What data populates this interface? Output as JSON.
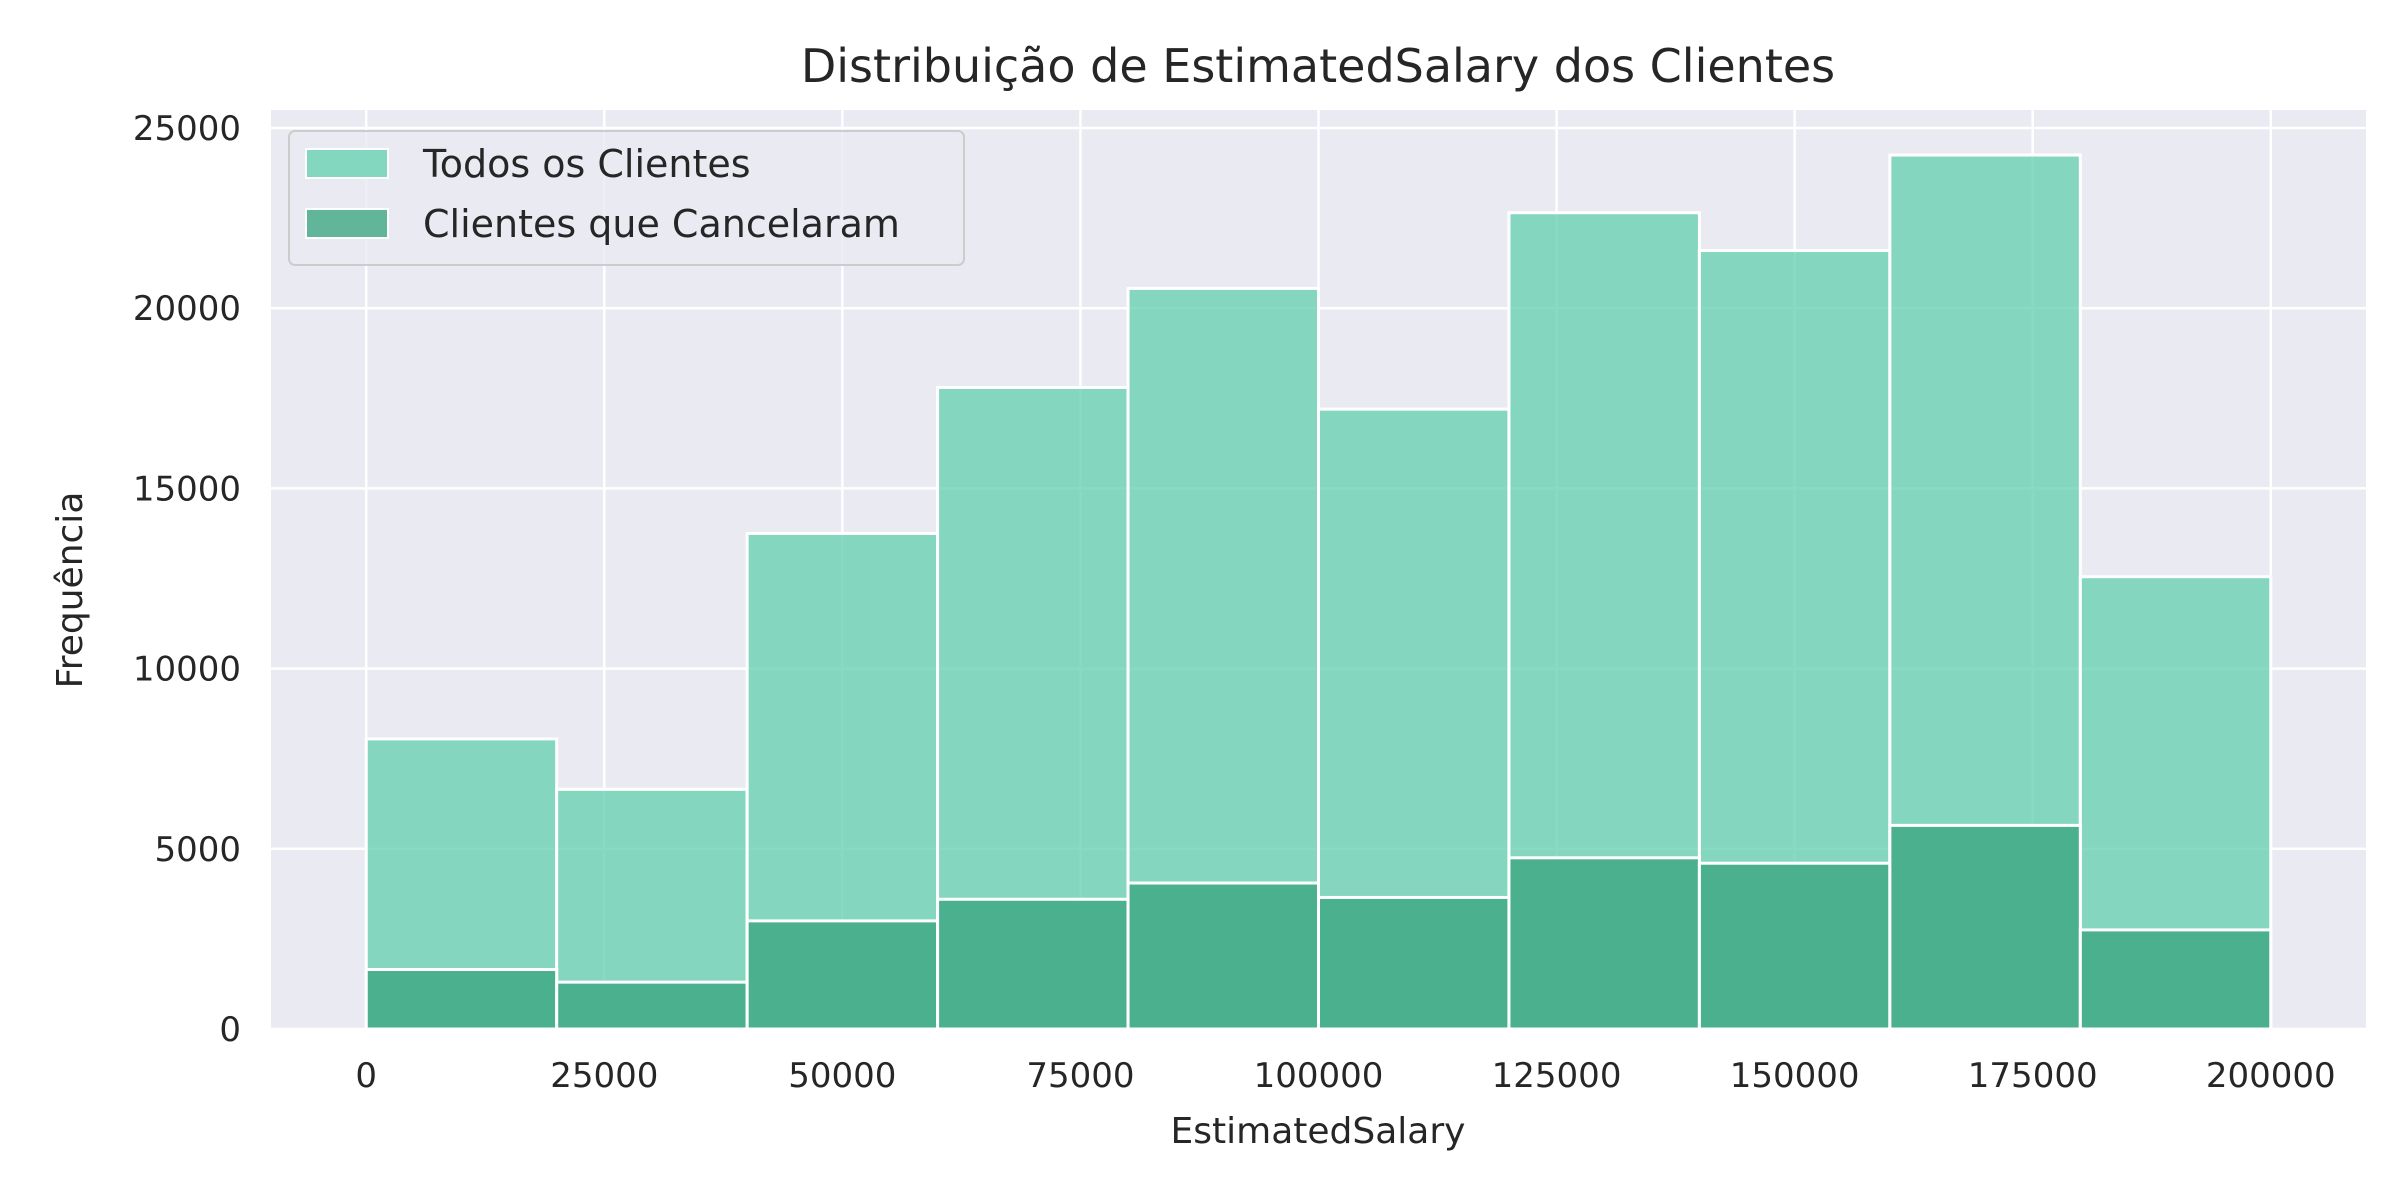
{
  "chart_data": {
    "type": "bar",
    "title": "Distribuição de EstimatedSalary dos Clientes",
    "xlabel": "EstimatedSalary",
    "ylabel": "Frequência",
    "x_bin_edges": [
      0,
      20000,
      40000,
      60000,
      80000,
      100000,
      120000,
      140000,
      160000,
      180000,
      200000
    ],
    "xlim": [
      -10000,
      210000
    ],
    "ylim": [
      0,
      25500
    ],
    "x_ticks": [
      0,
      25000,
      50000,
      75000,
      100000,
      125000,
      150000,
      175000,
      200000
    ],
    "y_ticks": [
      0,
      5000,
      10000,
      15000,
      20000,
      25000
    ],
    "grid": true,
    "legend_position": "top-left",
    "series": [
      {
        "name": "Todos os Clientes",
        "color": "#66d1b0",
        "values": [
          8050,
          6650,
          13750,
          17800,
          20550,
          17200,
          22650,
          21600,
          24250,
          12550
        ]
      },
      {
        "name": "Clientes que Cancelaram",
        "color": "#3aa57f",
        "values": [
          1650,
          1300,
          3000,
          3600,
          4050,
          3650,
          4750,
          4600,
          5650,
          2750
        ]
      }
    ]
  },
  "style": {
    "background": "#eaeaf2",
    "grid_color": "#ffffff",
    "edge_color": "#ffffff"
  }
}
